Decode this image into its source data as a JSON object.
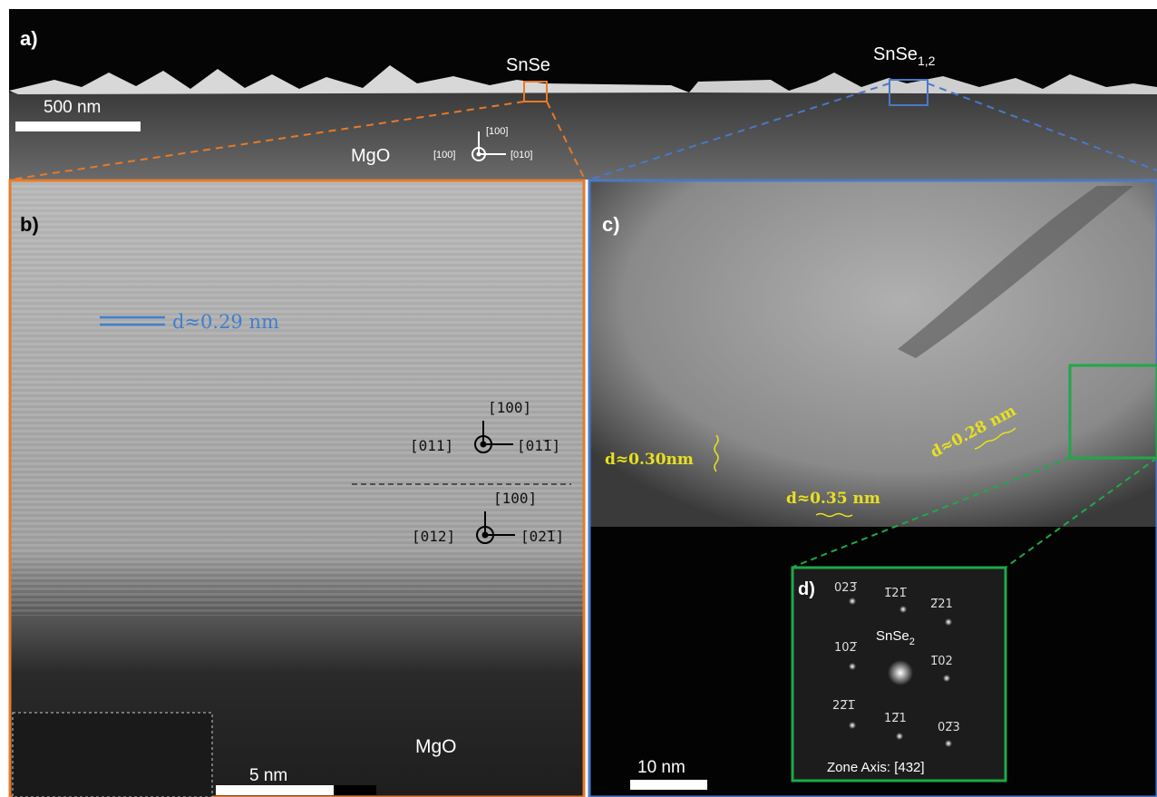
{
  "panel_a": {
    "label": "a)",
    "film_label": "SnSe",
    "film2_label": "SnSe",
    "film2_sub": "1,2",
    "scale_bar": "500 nm",
    "substrate": "MgO",
    "axis_up": "[100]",
    "axis_left": "[100]",
    "axis_right": "[010]"
  },
  "panel_b": {
    "label": "b)",
    "spacing": "d≈0.29 nm",
    "upper_up": "[100]",
    "upper_left": "[011]",
    "upper_right": "[01̅1]",
    "lower_up": "[100]",
    "lower_left": "[012]",
    "lower_right": "[02̅1]",
    "substrate": "MgO",
    "scale_bar": "5 nm"
  },
  "panel_c": {
    "label": "c)",
    "spacing_1": "d≈0.30nm",
    "spacing_2": "d≈0.28 nm",
    "spacing_3": "d≈0.35 nm",
    "scale_bar": "10 nm"
  },
  "panel_d": {
    "label": "d)",
    "spots": [
      "023̅",
      "1̅21̅",
      "2̅21",
      "102̅",
      "1̅02",
      "22̅1̅",
      "12̅1",
      "02̅3"
    ],
    "phase": "SnSe",
    "phase_sub": "2",
    "zone_axis": "Zone Axis: [432]"
  }
}
